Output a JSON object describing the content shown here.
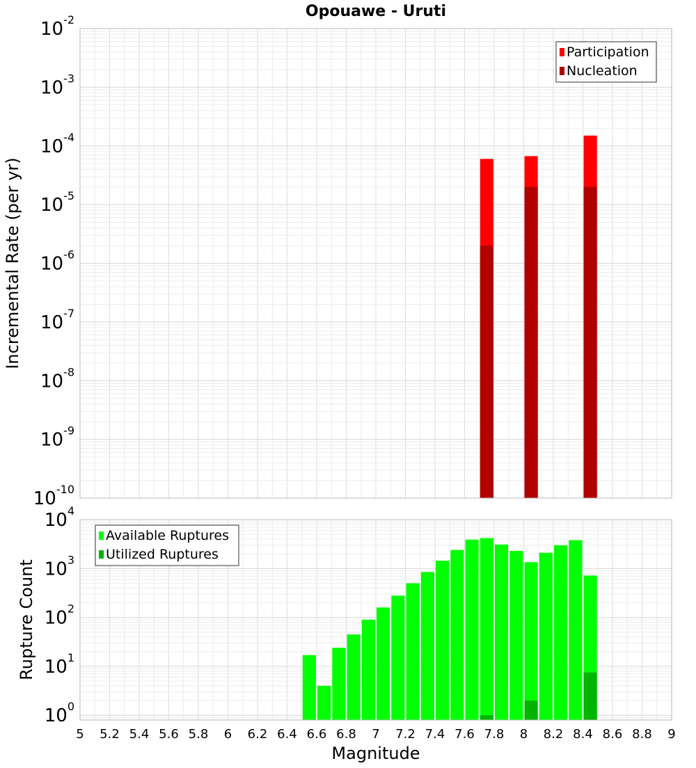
{
  "chart_data": [
    {
      "type": "bar",
      "title": "Opouawe - Uruti",
      "xlabel": "",
      "ylabel": "Incremental Rate (per yr)",
      "yscale": "log",
      "ylim": [
        1e-10,
        0.01
      ],
      "xlim": [
        5,
        9
      ],
      "grid": true,
      "legend_position": "top-right",
      "bar_width": 0.09,
      "y_tick_base": "10",
      "y_tick_exponents": [
        "-10",
        "-9",
        "-8",
        "-7",
        "-6",
        "-5",
        "-4",
        "-3",
        "-2"
      ],
      "x": [
        7.75,
        8.05,
        8.45
      ],
      "series": [
        {
          "name": "Participation",
          "color": "#ff0000",
          "values": [
            6e-05,
            6.7e-05,
            0.00015
          ]
        },
        {
          "name": "Nucleation",
          "color": "#b00000",
          "values": [
            2e-06,
            2e-05,
            2e-05
          ]
        }
      ]
    },
    {
      "type": "bar",
      "xlabel": "Magnitude",
      "ylabel": "Rupture Count",
      "yscale": "log",
      "ylim": [
        0.8,
        10000
      ],
      "xlim": [
        5,
        9
      ],
      "grid": true,
      "legend_position": "top-left",
      "bar_width": 0.09,
      "y_tick_base": "10",
      "y_tick_exponents": [
        "0",
        "1",
        "2",
        "3",
        "4"
      ],
      "x_ticks": [
        "5",
        "5.2",
        "5.4",
        "5.6",
        "5.8",
        "6",
        "6.2",
        "6.4",
        "6.6",
        "6.8",
        "7",
        "7.2",
        "7.4",
        "7.6",
        "7.8",
        "8",
        "8.2",
        "8.4",
        "8.6",
        "8.8",
        "9"
      ],
      "x": [
        6.55,
        6.65,
        6.75,
        6.85,
        6.95,
        7.05,
        7.15,
        7.25,
        7.35,
        7.45,
        7.55,
        7.65,
        7.75,
        7.85,
        7.95,
        8.05,
        8.15,
        8.25,
        8.35,
        8.45
      ],
      "series": [
        {
          "name": "Available Ruptures",
          "color": "#00ff00",
          "values": [
            17,
            4,
            24,
            45,
            90,
            160,
            280,
            500,
            850,
            1450,
            2400,
            3900,
            4200,
            3100,
            2300,
            1350,
            2100,
            3000,
            3800,
            720
          ]
        },
        {
          "name": "Utilized Ruptures",
          "color": "#00b400",
          "values": [
            0,
            0,
            0,
            0,
            0,
            0,
            0,
            0,
            0,
            0,
            0,
            0,
            1,
            0,
            0,
            2,
            0,
            0,
            0,
            7.5
          ]
        }
      ]
    }
  ]
}
